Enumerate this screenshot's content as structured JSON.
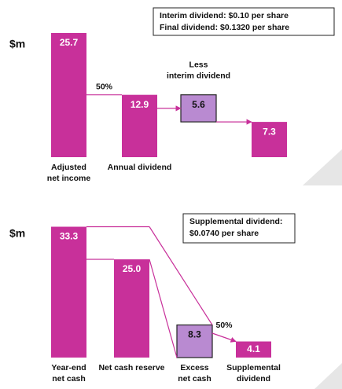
{
  "chart_data": [
    {
      "type": "waterfall",
      "unit": "$m",
      "color": "#c8309a",
      "categories": [
        [
          "Adjusted",
          "net income"
        ],
        [
          "Annual dividend"
        ],
        [
          "Less",
          "interim dividend"
        ],
        null
      ],
      "values": [
        25.7,
        12.9,
        5.6,
        7.3
      ],
      "colors": [
        "#c8309a",
        "#c8309a",
        "#b98ad1",
        "#c8309a"
      ],
      "annotations": [
        "50%"
      ],
      "note": [
        "Interim dividend:  $0.10 per share",
        "Final dividend: $0.1320 per share"
      ]
    },
    {
      "type": "bar",
      "unit": "$m",
      "color": "#c8309a",
      "categories": [
        [
          "Year-end",
          "net cash"
        ],
        [
          "Net cash reserve"
        ],
        [
          "Excess",
          "net cash"
        ],
        [
          "Supplemental",
          "dividend"
        ]
      ],
      "values": [
        33.3,
        25,
        8.3,
        4.1
      ],
      "value_labels": [
        "33.3",
        "25.0",
        "8.3",
        "4.1"
      ],
      "colors": [
        "#c8309a",
        "#c8309a",
        "#b98ad1",
        "#c8309a"
      ],
      "annotations": [
        "50%"
      ],
      "note": [
        "Supplemental dividend:",
        "$0.0740 per share"
      ]
    }
  ]
}
